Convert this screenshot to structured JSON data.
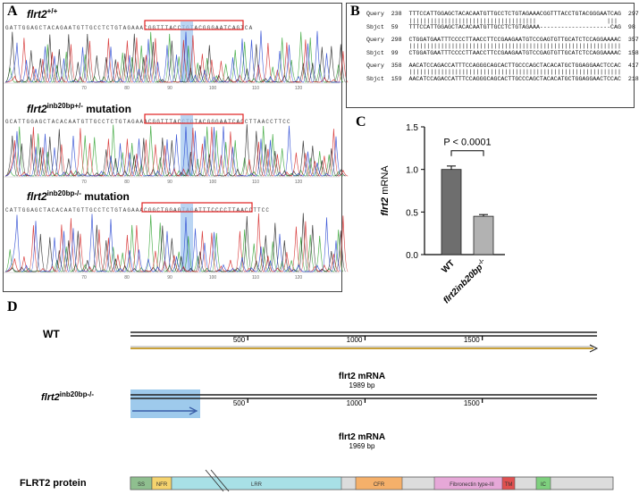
{
  "panel_a": {
    "label": "A",
    "tracks": [
      {
        "gene": "flrt2",
        "sup": "+/+",
        "suffix": "",
        "sequence": "GATTGGAGCTACAGAATGTTGCCTCTGTAGAAACGGTTTACCTGTACGGGAATCAGTCA",
        "ticks": [
          "70",
          "80",
          "90",
          "100",
          "110",
          "120"
        ]
      },
      {
        "gene": "flrt2",
        "sup": "inb20bp+/-",
        "suffix": " mutation",
        "sequence": "GCATTGGAGCTACACAATGTTGCCTCTGTAGAAACGGTTTACCTGTACGGGAATCACCTTAACCTTCC",
        "ticks": [
          "70",
          "80",
          "90",
          "100",
          "110",
          "120"
        ]
      },
      {
        "gene": "flrt2",
        "sup": "inb20bp-/-",
        "suffix": " mutation",
        "sequence": "CATTGGAGCTACACAATGTTGCCTCTGTAGAAACGGCTGGAGTAGATTTCCCCTTAACCTTCC",
        "ticks": [
          "70",
          "80",
          "90",
          "100",
          "110",
          "120"
        ]
      }
    ]
  },
  "panel_b": {
    "label": "B",
    "rows": [
      {
        "q_label": "Query",
        "q_start": "238",
        "q_seq": "TTTCCATTGGAGCTACACAATGTTGCCTCTGTAGAAACGGTTTACCTGTACGGGAATCAG",
        "q_end": "297",
        "match": "||||||||||||||||||||||||||||||||||||                    |||",
        "s_label": "Sbjct",
        "s_start": "59",
        "s_seq": "TTTCCATTGGAGCTACACAATGTTGCCTCTGTAGAAA--------------------CAG",
        "s_end": "98"
      },
      {
        "q_label": "Query",
        "q_start": "298",
        "q_seq": "CTGGATGAATTTCCCCTTAACCTTCCGAAGAATGTCCGAGTGTTGCATCTCCAGGAAAAC",
        "q_end": "357",
        "match": "||||||||||||||||||||||||||||||||||||||||||||||||||||||||||||",
        "s_label": "Sbjct",
        "s_start": "99",
        "s_seq": "CTGGATGAATTTCCCCTTAACCTTCCGAAGAATGTCCGAGTGTTGCATCTCCAGGAAAAC",
        "s_end": "158"
      },
      {
        "q_label": "Query",
        "q_start": "358",
        "q_seq": "AACATCCAGACCATTTCCAGGGCAGCACTTGCCCAGCTACACATGCTGGAGGAACTCCAC",
        "q_end": "417",
        "match": "||||||||||||||||||||||||||||||||||||||||||||||||||||||||||||",
        "s_label": "Sbjct",
        "s_start": "159",
        "s_seq": "AACATCCAGACCATTTCCAGGGCAGCACTTGCCCAGCTACACATGCTGGAGGAACTCCAC",
        "s_end": "218"
      }
    ]
  },
  "panel_c": {
    "label": "C",
    "pvalue": "P < 0.0001",
    "chart_data": {
      "type": "bar",
      "categories": [
        "WT",
        "flrt2inb20bp-/-"
      ],
      "values": [
        1.0,
        0.45
      ],
      "errors": [
        0.04,
        0.02
      ],
      "colors": [
        "#6e6e6e",
        "#b2b2b2"
      ],
      "ylabel_gene": "flrt2",
      "ylabel_rest": " mRNA",
      "ylim": [
        0,
        1.5
      ],
      "yticks": [
        "0.0",
        "0.5",
        "1.0",
        "1.5"
      ],
      "xtick_labels": [
        {
          "main": "WT",
          "sup": ""
        },
        {
          "main": "flrt2inb20bp",
          "sup": "-/-"
        }
      ]
    }
  },
  "panel_d": {
    "label": "D",
    "wt_label": "WT",
    "mut_gene": "flrt2",
    "mut_sup": "inb20bp-/-",
    "ticks": [
      "500",
      "1000",
      "1500"
    ],
    "wt_mrna_title": "flrt2 mRNA",
    "wt_mrna_bp": "1989 bp",
    "mut_mrna_title": "flrt2 mRNA",
    "mut_mrna_bp": "1969 bp",
    "protein_label": "FLRT2 protein",
    "domains": [
      "SS",
      "NFR",
      "LRR",
      "CFR",
      "Fibronectin type-III",
      "TM",
      "IC"
    ],
    "colors": {
      "arrow": "#c8a038",
      "highlight": "#7eb8e6",
      "ss": "#8fbf8f",
      "nfr": "#f5d36e",
      "lrr": "#a8e0e6",
      "cfr": "#f5b06a",
      "fn": "#e6a8d8",
      "tm": "#e05050",
      "ic": "#7ed07e"
    }
  }
}
